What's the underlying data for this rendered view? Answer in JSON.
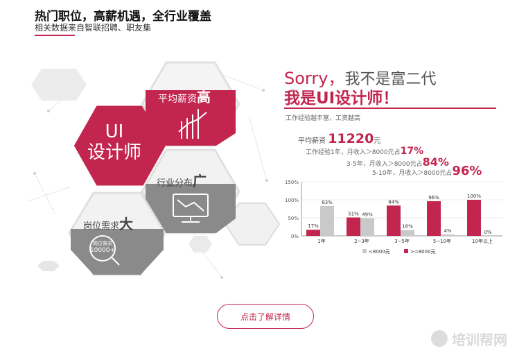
{
  "header": {
    "title": "热门职位，高薪机遇，全行业覆盖",
    "subtitle": "相关数据来自智联招聘、职友集"
  },
  "hexagons": {
    "main_line1": "UI",
    "main_line2": "设计师",
    "salary_label": "平均薪资",
    "salary_emph": "高",
    "industry_label": "行业分布",
    "industry_emph": "广",
    "demand_label": "岗位需求",
    "demand_emph": "大",
    "demand_icon_top": "岗位需求",
    "demand_icon_value": "10000+"
  },
  "intro": {
    "sorry": "Sorry，",
    "sorry_rest": "我不是富二代",
    "iam": "我是UI设计师！",
    "note": "工作经验越丰富，工资越高",
    "avg_label": "平均薪资",
    "avg_value": "11220",
    "avg_unit": "元",
    "stat1_label": "工作经验1年，月收入＞8000元占",
    "stat1_value": "17%",
    "stat2_label": "3-5年，月收入＞8000元占",
    "stat2_value": "84%",
    "stat3_label": "5-10年，月收入＞8000元占",
    "stat3_value": "96%"
  },
  "chart_data": {
    "type": "bar",
    "categories": [
      "1年",
      "2~3年",
      "3~5年",
      "5~10年",
      "10年以上"
    ],
    "series": [
      {
        "name": "<8000元",
        "values": [
          83,
          49,
          16,
          4,
          0
        ],
        "color": "#c9c9c9"
      },
      {
        "name": ">=8000元",
        "values": [
          17,
          51,
          84,
          96,
          100
        ],
        "color": "#c2264f"
      }
    ],
    "y_ticks": [
      "0%",
      "50%",
      "100%",
      "150%"
    ],
    "ylim": [
      0,
      150
    ],
    "legend_position": "bottom"
  },
  "cta": {
    "label": "点击了解详情"
  },
  "watermark": {
    "text": "培训帮网"
  },
  "colors": {
    "accent": "#c2264f",
    "gray": "#8a8a8a",
    "light": "#e6e6e6"
  }
}
